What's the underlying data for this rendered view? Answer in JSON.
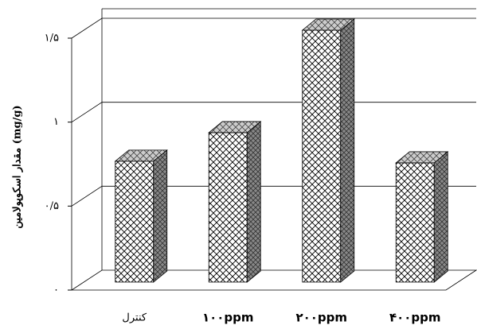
{
  "chart_data": {
    "type": "bar3d",
    "y_label": "مقدار اسکوپولامین (mg/g)",
    "categories": [
      "کنترل",
      "۱۰۰ppm",
      "۲۰۰ppm",
      "۴۰۰ppm"
    ],
    "values": [
      0.72,
      0.89,
      1.5,
      0.71
    ],
    "ylim": [
      0,
      1.5
    ],
    "yticks": [
      {
        "value": 0,
        "label": "۰"
      },
      {
        "value": 0.5,
        "label": "۰/۵"
      },
      {
        "value": 1,
        "label": "۱"
      },
      {
        "value": 1.5,
        "label": "۱/۵"
      }
    ],
    "grid": true
  }
}
